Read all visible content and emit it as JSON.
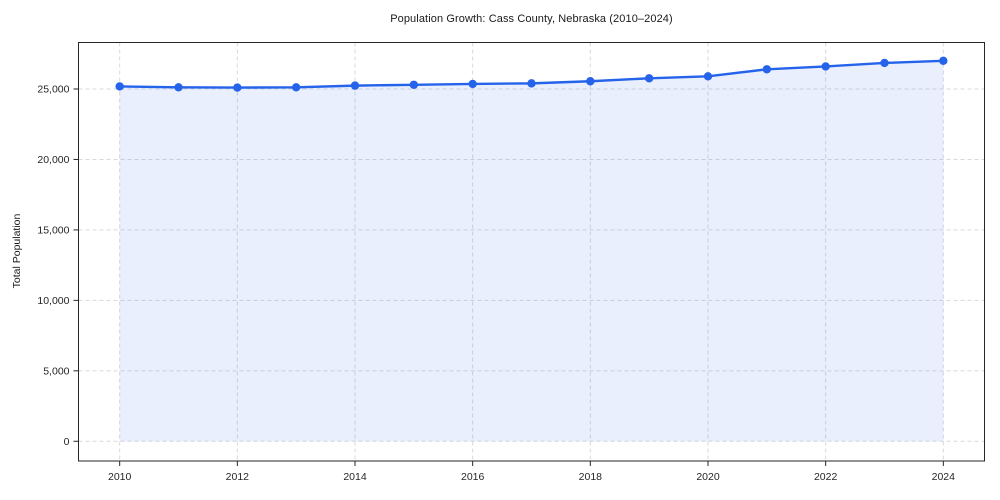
{
  "chart_data": {
    "type": "area",
    "title": "Population Growth: Cass County, Nebraska (2010–2024)",
    "xlabel": "",
    "ylabel": "Total Population",
    "x": [
      2010,
      2011,
      2012,
      2013,
      2014,
      2015,
      2016,
      2017,
      2018,
      2019,
      2020,
      2021,
      2022,
      2023,
      2024
    ],
    "series": [
      {
        "name": "Total Population",
        "values": [
          25180,
          25120,
          25100,
          25120,
          25240,
          25300,
          25360,
          25400,
          25550,
          25760,
          25900,
          26400,
          26600,
          26850,
          27000
        ]
      }
    ],
    "baseline": 0,
    "x_ticks": [
      2010,
      2012,
      2014,
      2016,
      2018,
      2020,
      2022,
      2024
    ],
    "x_tick_labels": [
      "2010",
      "2012",
      "2014",
      "2016",
      "2018",
      "2020",
      "2022",
      "2024"
    ],
    "y_ticks": [
      0,
      5000,
      10000,
      15000,
      20000,
      25000
    ],
    "y_tick_labels": [
      "0",
      "5,000",
      "10,000",
      "15,000",
      "20,000",
      "25,000"
    ],
    "xlim": [
      2009.3,
      2024.7
    ],
    "ylim": [
      -1400,
      28300
    ],
    "grid": true,
    "grid_style": "dashed",
    "legend": "none",
    "colors": {
      "line": "#2563eb",
      "marker": "#2563eb",
      "fill": "#2563eb",
      "fill_opacity": 0.1,
      "grid": "#d9d9d9",
      "spine": "#262626",
      "tick": "#262626",
      "text": "#1a1a1a",
      "background": "#ffffff"
    }
  }
}
